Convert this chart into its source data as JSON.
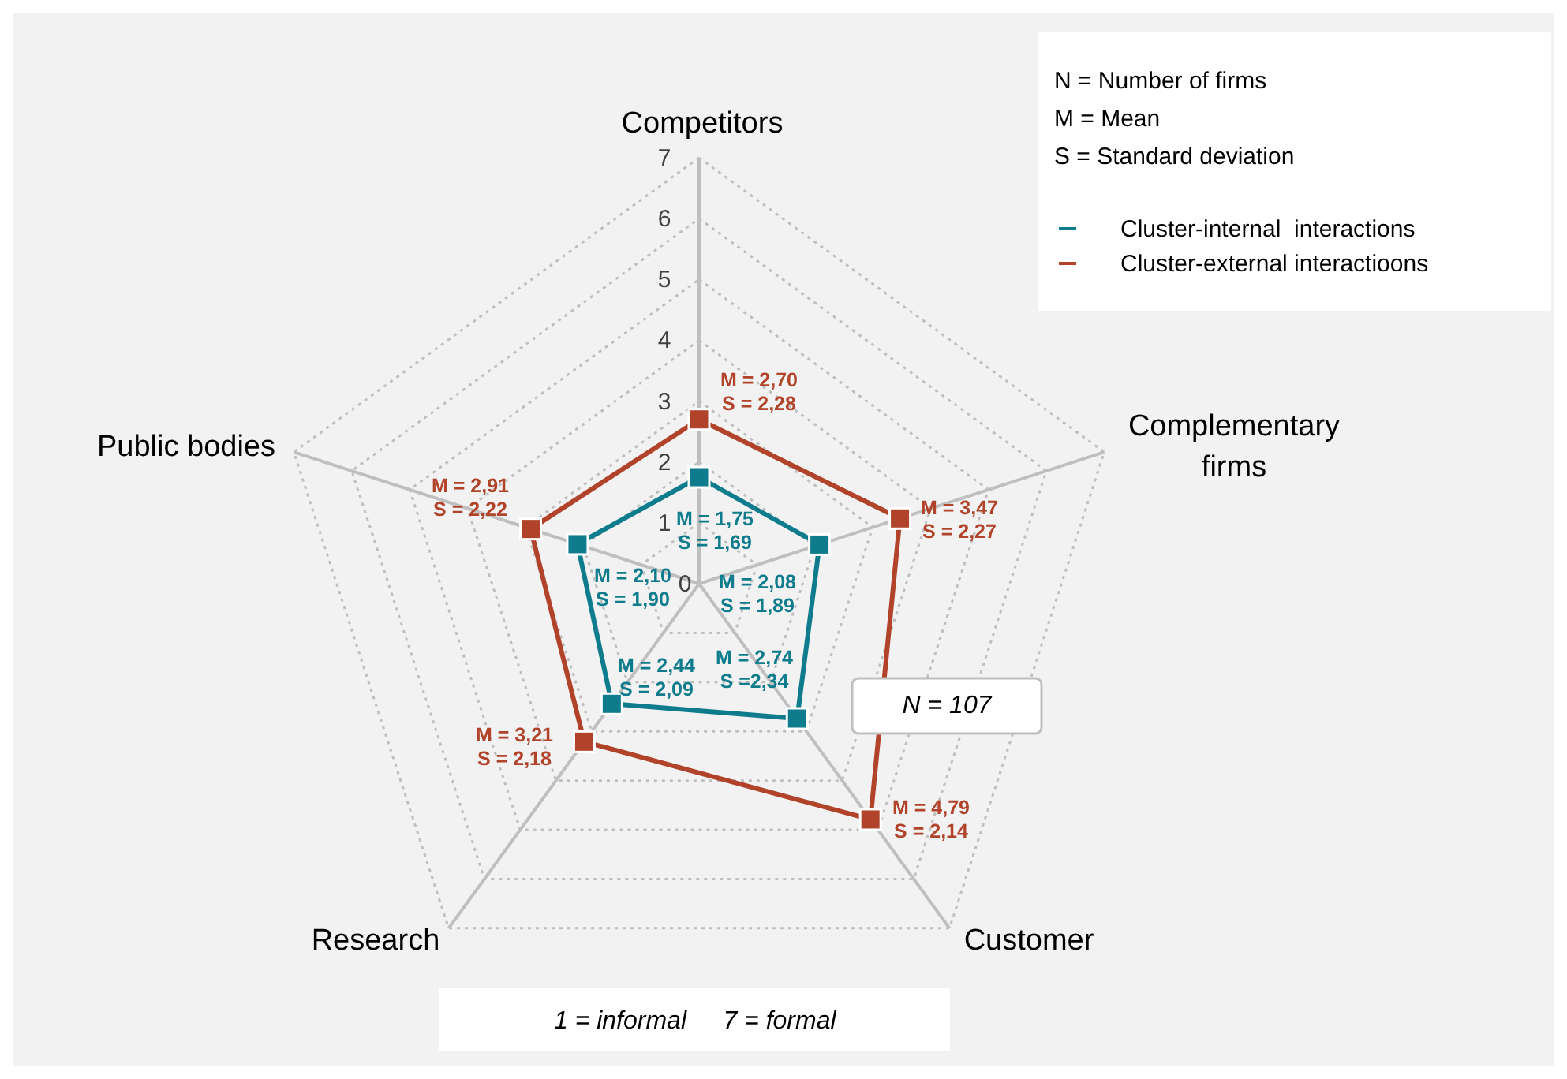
{
  "chart_data": {
    "type": "radar",
    "categories": [
      "Competitors",
      "Complementary firms",
      "Customer",
      "Research",
      "Public bodies"
    ],
    "series": [
      {
        "name": "Cluster-internal  interactions",
        "color": "#0e7c8c",
        "values": [
          1.75,
          2.08,
          2.74,
          2.44,
          2.1
        ],
        "value_labels": [
          "M = 1,75\nS = 1,69",
          "M = 2,08\nS = 1,89",
          "M = 2,74\nS =2,34",
          "M = 2,44\nS = 2,09",
          "M = 2,10\nS = 1,90"
        ]
      },
      {
        "name": "Cluster-external interactioons",
        "color": "#b0432a",
        "values": [
          2.7,
          3.47,
          4.79,
          3.21,
          2.91
        ],
        "value_labels": [
          "M = 2,70\nS = 2,28",
          "M = 3,47\nS = 2,27",
          "M = 4,79\nS = 2,14",
          "M = 3,21\nS = 2,18",
          "M = 2,91\nS = 2,22"
        ]
      }
    ],
    "ylim": [
      0,
      7
    ],
    "yticks": [
      0,
      1,
      2,
      3,
      4,
      5,
      6,
      7
    ],
    "grid": true,
    "legend": "top right",
    "marker": "square",
    "line_style": "solid",
    "annotations": [
      "N = Number of firms",
      "M = Mean",
      "S = Standard deviation",
      "N = 107",
      "1 = informal",
      "7 = formal"
    ]
  }
}
